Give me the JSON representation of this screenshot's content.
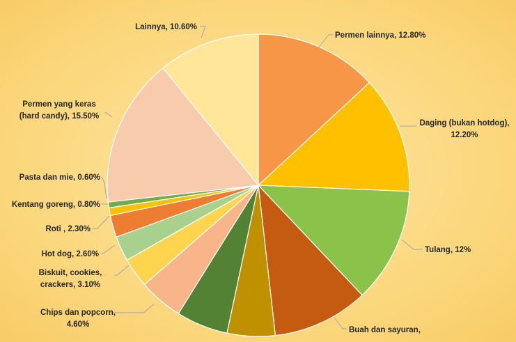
{
  "chart_data": {
    "type": "pie",
    "title": "",
    "slices": [
      {
        "label": "Permen lainnya, 12.80%",
        "name": "Permen lainnya",
        "value": 12.8,
        "color": "#F79646"
      },
      {
        "label": "Daging (bukan hotdog), 12.20%",
        "name": "Daging (bukan hotdog)",
        "value": 12.2,
        "color": "#FFC000"
      },
      {
        "label": "Tulang, 12%",
        "name": "Tulang",
        "value": 12.0,
        "color": "#8BC34A"
      },
      {
        "label": "Buah dan sayuran,",
        "name": "Buah dan sayuran",
        "value": 10.0,
        "color": "#C55A11"
      },
      {
        "label": "",
        "name": "",
        "value": 5.0,
        "color": "#BF9000"
      },
      {
        "label": "",
        "name": "",
        "value": 5.4,
        "color": "#548235"
      },
      {
        "label": "Chips dan popcorn, 4.60%",
        "name": "Chips dan popcorn",
        "value": 4.6,
        "color": "#F8B58A"
      },
      {
        "label": "Biskuit, cookies, crackers, 3.10%",
        "name": "Biskuit, cookies, crackers",
        "value": 3.1,
        "color": "#FFD54F"
      },
      {
        "label": "Hot dog, 2.60%",
        "name": "Hot dog",
        "value": 2.6,
        "color": "#A9D18E"
      },
      {
        "label": "Roti , 2.30%",
        "name": "Roti",
        "value": 2.3,
        "color": "#ED7D31"
      },
      {
        "label": "Kentang goreng, 0.80%",
        "name": "Kentang goreng",
        "value": 0.8,
        "color": "#FFC000"
      },
      {
        "label": "Pasta dan mie, 0.60%",
        "name": "Pasta dan mie",
        "value": 0.6,
        "color": "#70AD47"
      },
      {
        "label": "Permen yang keras (hard candy), 15.50%",
        "name": "Permen yang keras (hard candy)",
        "value": 15.5,
        "color": "#F8CBAD"
      },
      {
        "label": "Lainnya, 10.60%",
        "name": "Lainnya",
        "value": 10.6,
        "color": "#FFE699"
      }
    ],
    "start": "12 o'clock, clockwise",
    "legend": "none (data labels with leader lines)"
  },
  "labels": {
    "permen_lainnya": "Permen lainnya, 12.80%",
    "daging_1": "Daging (bukan hotdog),",
    "daging_2": "12.20%",
    "tulang": "Tulang, 12%",
    "buah_1": "Buah dan sayuran,",
    "chips_1": "Chips dan popcorn,",
    "chips_2": "4.60%",
    "biskuit_1": "Biskuit, cookies,",
    "biskuit_2": "crackers, 3.10%",
    "hotdog": "Hot dog, 2.60%",
    "roti": "Roti , 2.30%",
    "kentang": "Kentang goreng, 0.80%",
    "pasta": "Pasta dan mie, 0.60%",
    "hard_1": "Permen yang keras",
    "hard_2": "(hard candy), 15.50%",
    "lainnya": "Lainnya, 10.60%"
  }
}
